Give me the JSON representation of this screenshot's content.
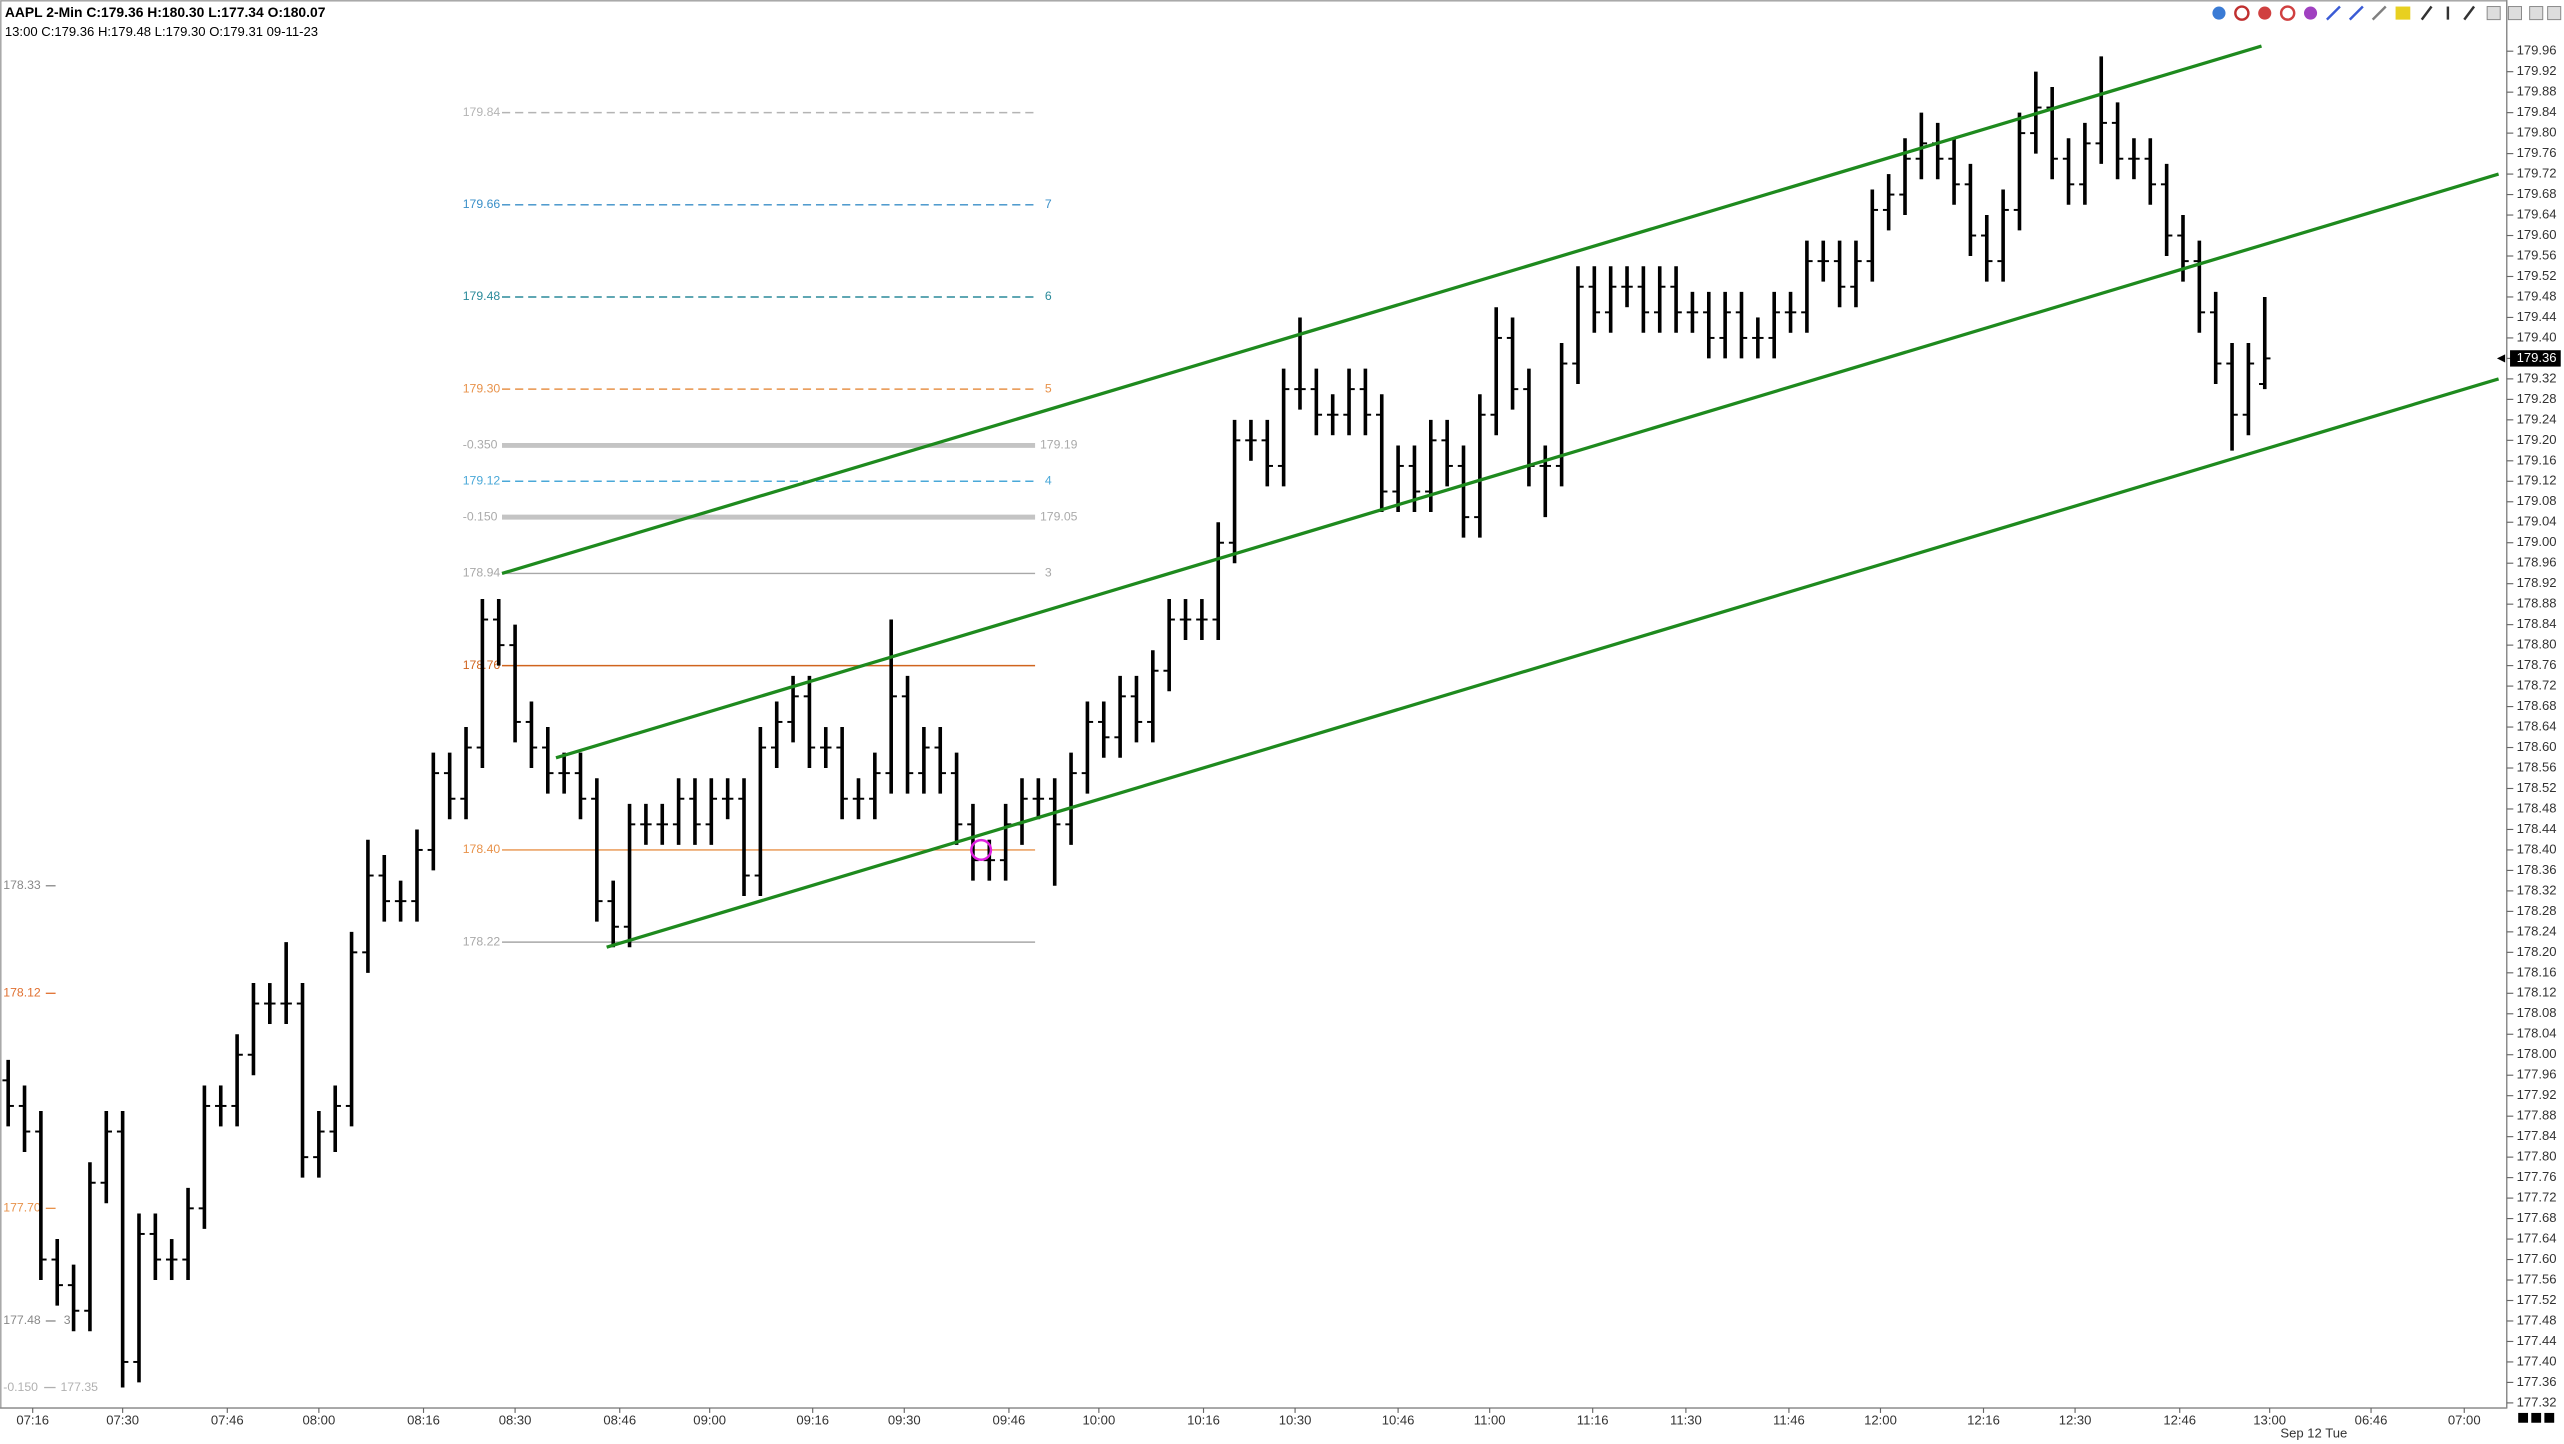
{
  "chart_data": {
    "type": "ohlc",
    "header": "AAPL 2-Min C:179.36 H:180.30 L:177.34 O:180.07",
    "subheader": "13:00 C:179.36 H:179.48 L:179.30 O:179.31 09-11-23",
    "date_label": "Sep 12 Tue",
    "color": "#000000",
    "xlim": [
      -0.5,
      152.8
    ],
    "ylim": [
      177.31,
      180.06
    ],
    "yticks": [
      179.96,
      179.92,
      179.88,
      179.84,
      {
        "value": 179.8,
        "label": "179.80"
      },
      179.76,
      179.72,
      179.68,
      179.64,
      {
        "value": 179.6,
        "label": "179.60"
      },
      179.56,
      179.52,
      179.48,
      179.44,
      {
        "value": 179.4,
        "label": "179.40"
      },
      179.36,
      179.32,
      179.28,
      179.24,
      {
        "value": 179.2,
        "label": "179.20"
      },
      179.16,
      179.12,
      179.08,
      179.04,
      {
        "value": 179.0,
        "label": "179.00"
      },
      178.96,
      178.92,
      178.88,
      178.84,
      {
        "value": 178.8,
        "label": "178.80"
      },
      178.76,
      178.72,
      178.68,
      178.64,
      {
        "value": 178.6,
        "label": "178.60"
      },
      178.56,
      178.52,
      178.48,
      178.44,
      {
        "value": 178.4,
        "label": "178.40"
      },
      178.36,
      178.32,
      178.28,
      178.24,
      {
        "value": 178.2,
        "label": "178.20"
      },
      178.16,
      178.12,
      178.08,
      178.04,
      {
        "value": 178.0,
        "label": "178.00"
      },
      177.96,
      177.92,
      177.88,
      177.84,
      {
        "value": 177.8,
        "label": "177.80"
      },
      177.76,
      177.72,
      177.68,
      177.64,
      {
        "value": 177.6,
        "label": "177.60"
      },
      177.56,
      177.52,
      177.48,
      177.44,
      {
        "value": 177.4,
        "label": "177.40"
      },
      177.36,
      177.32
    ],
    "xticks": [
      {
        "value": 1.5,
        "label": "07:16"
      },
      {
        "value": 7,
        "label": "07:30"
      },
      {
        "value": 13.4,
        "label": "07:46"
      },
      {
        "value": 19,
        "label": "08:00"
      },
      {
        "value": 25.4,
        "label": "08:16"
      },
      {
        "value": 31,
        "label": "08:30"
      },
      {
        "value": 37.4,
        "label": "08:46"
      },
      {
        "value": 42.9,
        "label": "09:00"
      },
      {
        "value": 49.2,
        "label": "09:16"
      },
      {
        "value": 54.8,
        "label": "09:30"
      },
      {
        "value": 61.2,
        "label": "09:46"
      },
      {
        "value": 66.7,
        "label": "10:00"
      },
      {
        "value": 73.1,
        "label": "10:16"
      },
      {
        "value": 78.7,
        "label": "10:30"
      },
      {
        "value": 85,
        "label": "10:46"
      },
      {
        "value": 90.6,
        "label": "11:00"
      },
      {
        "value": 96.9,
        "label": "11:16"
      },
      {
        "value": 102.6,
        "label": "11:30"
      },
      {
        "value": 108.9,
        "label": "11:46"
      },
      {
        "value": 114.5,
        "label": "12:00"
      },
      {
        "value": 120.8,
        "label": "12:16"
      },
      {
        "value": 126.4,
        "label": "12:30"
      },
      {
        "value": 132.8,
        "label": "12:46"
      },
      {
        "value": 138.3,
        "label": "13:00"
      },
      {
        "value": 144.5,
        "label": "06:46"
      },
      {
        "value": 150.2,
        "label": "07:00"
      }
    ],
    "open": [
      177.95,
      177.9,
      177.85,
      177.6,
      177.55,
      177.5,
      177.75,
      177.85,
      177.4,
      177.65,
      177.6,
      177.6,
      177.7,
      177.9,
      177.9,
      178.0,
      178.1,
      178.1,
      178.1,
      177.8,
      177.85,
      177.9,
      178.2,
      178.35,
      178.3,
      178.3,
      178.4,
      178.55,
      178.5,
      178.6,
      178.85,
      178.8,
      178.65,
      178.6,
      178.55,
      178.55,
      178.5,
      178.3,
      178.25,
      178.45,
      178.45,
      178.45,
      178.5,
      178.45,
      178.5,
      178.5,
      178.35,
      178.6,
      178.65,
      178.7,
      178.6,
      178.6,
      178.5,
      178.5,
      178.55,
      178.7,
      178.55,
      178.6,
      178.55,
      178.45,
      178.38,
      178.38,
      178.45,
      178.5,
      178.5,
      178.45,
      178.55,
      178.65,
      178.62,
      178.7,
      178.65,
      178.75,
      178.85,
      178.85,
      178.85,
      179.0,
      179.2,
      179.2,
      179.15,
      179.3,
      179.3,
      179.25,
      179.25,
      179.3,
      179.25,
      179.1,
      179.15,
      179.1,
      179.2,
      179.15,
      179.05,
      179.25,
      179.4,
      179.3,
      179.15,
      179.15,
      179.35,
      179.5,
      179.45,
      179.5,
      179.5,
      179.45,
      179.5,
      179.45,
      179.45,
      179.4,
      179.45,
      179.4,
      179.4,
      179.45,
      179.45,
      179.55,
      179.55,
      179.5,
      179.55,
      179.65,
      179.68,
      179.75,
      179.78,
      179.75,
      179.7,
      179.6,
      179.55,
      179.65,
      179.8,
      179.85,
      179.75,
      179.7,
      179.78,
      179.82,
      179.75,
      179.75,
      179.7,
      179.6,
      179.55,
      179.45,
      179.35,
      179.25,
      179.31
    ],
    "high": [
      177.99,
      177.94,
      177.89,
      177.64,
      177.59,
      177.79,
      177.89,
      177.89,
      177.69,
      177.69,
      177.64,
      177.74,
      177.94,
      177.94,
      178.04,
      178.14,
      178.14,
      178.22,
      178.14,
      177.89,
      177.94,
      178.24,
      178.42,
      178.39,
      178.34,
      178.44,
      178.59,
      178.59,
      178.64,
      178.89,
      178.89,
      178.84,
      178.69,
      178.64,
      178.59,
      178.59,
      178.54,
      178.34,
      178.49,
      178.49,
      178.49,
      178.54,
      178.54,
      178.54,
      178.54,
      178.54,
      178.64,
      178.69,
      178.74,
      178.74,
      178.64,
      178.64,
      178.54,
      178.59,
      178.85,
      178.74,
      178.64,
      178.64,
      178.59,
      178.49,
      178.42,
      178.49,
      178.54,
      178.54,
      178.54,
      178.59,
      178.69,
      178.69,
      178.74,
      178.74,
      178.79,
      178.89,
      178.89,
      178.89,
      179.04,
      179.24,
      179.24,
      179.24,
      179.34,
      179.44,
      179.34,
      179.29,
      179.34,
      179.34,
      179.29,
      179.19,
      179.19,
      179.24,
      179.24,
      179.19,
      179.29,
      179.46,
      179.44,
      179.34,
      179.19,
      179.39,
      179.54,
      179.54,
      179.54,
      179.54,
      179.54,
      179.54,
      179.54,
      179.49,
      179.49,
      179.49,
      179.49,
      179.44,
      179.49,
      179.49,
      179.59,
      179.59,
      179.59,
      179.59,
      179.69,
      179.72,
      179.79,
      179.84,
      179.82,
      179.79,
      179.74,
      179.64,
      179.69,
      179.84,
      179.92,
      179.89,
      179.79,
      179.82,
      179.95,
      179.86,
      179.79,
      179.79,
      179.74,
      179.64,
      179.59,
      179.49,
      179.39,
      179.39,
      179.48
    ],
    "low": [
      177.86,
      177.81,
      177.56,
      177.51,
      177.46,
      177.46,
      177.71,
      177.35,
      177.36,
      177.56,
      177.56,
      177.56,
      177.66,
      177.86,
      177.86,
      177.96,
      178.06,
      178.06,
      177.76,
      177.76,
      177.81,
      177.86,
      178.16,
      178.26,
      178.26,
      178.26,
      178.36,
      178.46,
      178.46,
      178.56,
      178.76,
      178.61,
      178.56,
      178.51,
      178.51,
      178.46,
      178.26,
      178.21,
      178.21,
      178.41,
      178.41,
      178.41,
      178.41,
      178.41,
      178.46,
      178.31,
      178.31,
      178.56,
      178.61,
      178.56,
      178.56,
      178.46,
      178.46,
      178.46,
      178.51,
      178.51,
      178.51,
      178.51,
      178.41,
      178.34,
      178.34,
      178.34,
      178.41,
      178.46,
      178.33,
      178.41,
      178.51,
      178.58,
      178.58,
      178.61,
      178.61,
      178.71,
      178.81,
      178.81,
      178.81,
      178.96,
      179.16,
      179.11,
      179.11,
      179.26,
      179.21,
      179.21,
      179.21,
      179.21,
      179.06,
      179.06,
      179.06,
      179.06,
      179.11,
      179.01,
      179.01,
      179.21,
      179.26,
      179.11,
      179.05,
      179.11,
      179.31,
      179.41,
      179.41,
      179.46,
      179.41,
      179.41,
      179.41,
      179.41,
      179.36,
      179.36,
      179.36,
      179.36,
      179.36,
      179.41,
      179.41,
      179.51,
      179.46,
      179.46,
      179.51,
      179.61,
      179.64,
      179.71,
      179.71,
      179.66,
      179.56,
      179.51,
      179.51,
      179.61,
      179.76,
      179.71,
      179.66,
      179.66,
      179.74,
      179.71,
      179.71,
      179.66,
      179.56,
      179.51,
      179.41,
      179.31,
      179.18,
      179.21,
      179.3
    ],
    "close": [
      177.9,
      177.85,
      177.6,
      177.55,
      177.5,
      177.75,
      177.85,
      177.4,
      177.65,
      177.6,
      177.6,
      177.7,
      177.9,
      177.9,
      178.0,
      178.1,
      178.1,
      178.1,
      177.8,
      177.85,
      177.9,
      178.2,
      178.35,
      178.3,
      178.3,
      178.4,
      178.55,
      178.5,
      178.6,
      178.85,
      178.8,
      178.65,
      178.6,
      178.55,
      178.55,
      178.5,
      178.3,
      178.25,
      178.45,
      178.45,
      178.45,
      178.5,
      178.45,
      178.5,
      178.5,
      178.35,
      178.6,
      178.65,
      178.7,
      178.6,
      178.6,
      178.5,
      178.5,
      178.55,
      178.7,
      178.55,
      178.6,
      178.55,
      178.45,
      178.38,
      178.38,
      178.45,
      178.5,
      178.5,
      178.45,
      178.55,
      178.65,
      178.62,
      178.7,
      178.65,
      178.75,
      178.85,
      178.85,
      178.85,
      179.0,
      179.2,
      179.2,
      179.15,
      179.3,
      179.3,
      179.25,
      179.25,
      179.3,
      179.25,
      179.1,
      179.15,
      179.1,
      179.2,
      179.15,
      179.05,
      179.25,
      179.4,
      179.3,
      179.15,
      179.15,
      179.35,
      179.5,
      179.45,
      179.5,
      179.5,
      179.45,
      179.5,
      179.45,
      179.45,
      179.4,
      179.45,
      179.4,
      179.4,
      179.45,
      179.45,
      179.55,
      179.55,
      179.5,
      179.55,
      179.65,
      179.68,
      179.75,
      179.78,
      179.75,
      179.7,
      179.6,
      179.55,
      179.65,
      179.8,
      179.85,
      179.75,
      179.7,
      179.78,
      179.82,
      179.75,
      179.75,
      179.7,
      179.6,
      179.55,
      179.45,
      179.35,
      179.25,
      179.35,
      179.36
    ],
    "last": {
      "value": 179.36,
      "label": "179.36"
    },
    "channel_color": "#1e8a1e",
    "channel_lines": [
      {
        "x": [
          30.2,
          137.8
        ],
        "y": [
          178.94,
          179.97
        ]
      },
      {
        "x": [
          33.5,
          152.3
        ],
        "y": [
          178.58,
          179.72
        ]
      },
      {
        "x": [
          36.6,
          152.3
        ],
        "y": [
          178.21,
          179.32
        ]
      }
    ],
    "fib_x": [
      30.2,
      62.8
    ],
    "fib_levels": [
      {
        "value": 179.84,
        "label": "179.84",
        "color": "#b4b4b4",
        "dashed": true
      },
      {
        "value": 179.66,
        "label": "179.66",
        "color": "#3a8fc8",
        "dashed": true,
        "tag": "7"
      },
      {
        "value": 179.48,
        "label": "179.48",
        "color": "#2a8a9a",
        "dashed": true,
        "tag": "6"
      },
      {
        "value": 179.3,
        "label": "179.30",
        "color": "#e8924a",
        "dashed": true,
        "tag": "5"
      },
      {
        "value": 179.12,
        "label": "179.12",
        "color": "#4aa8d8",
        "dashed": true,
        "tag": "4"
      },
      {
        "value": 178.94,
        "label": "178.94",
        "color": "#a8a8a8",
        "dashed": false,
        "tag": "3"
      },
      {
        "value": 178.76,
        "label": "178.76",
        "color": "#d0641e",
        "dashed": false
      },
      {
        "value": 178.4,
        "label": "178.40",
        "color": "#e8924a",
        "dashed": false
      },
      {
        "value": 178.22,
        "label": "178.22",
        "color": "#a8a8a8",
        "dashed": false
      }
    ],
    "band_levels": [
      {
        "value": 179.19,
        "note": "-0.350",
        "label": "179.19",
        "color": "#c4c4c4"
      },
      {
        "value": 179.05,
        "note": "-0.150",
        "label": "179.05",
        "color": "#c4c4c4"
      }
    ],
    "left_levels": [
      {
        "value": 178.33,
        "label": "178.33",
        "color": "#888888"
      },
      {
        "value": 178.12,
        "label": "178.12",
        "color": "#e07030"
      },
      {
        "value": 177.7,
        "label": "177.70",
        "color": "#e8924a"
      },
      {
        "value": 177.48,
        "label": "177.48",
        "color": "#888888",
        "tag": "3"
      },
      {
        "value": 177.35,
        "note": "-0.150",
        "label": "177.35",
        "color": "#b0b0b0"
      }
    ],
    "marker": {
      "x": 59.5,
      "y": 178.4,
      "color": "#e020e0"
    }
  }
}
